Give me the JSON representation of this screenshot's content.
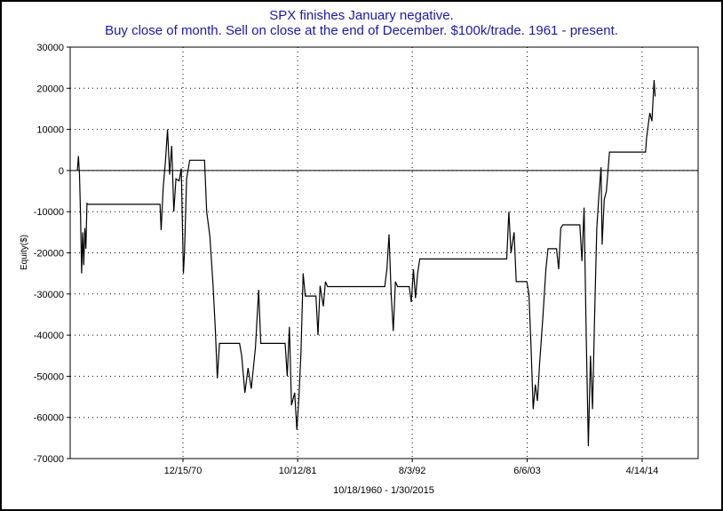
{
  "chart_data": {
    "type": "line",
    "title": "SPX finishes January negative.",
    "subtitle": "Buy close of month. Sell on close at the end of December. $100k/trade. 1961 - present.",
    "ylabel": "Equity($)",
    "xlabel": "10/18/1960 - 1/30/2015",
    "x_start": "10/18/1960",
    "x_end": "1/30/2015",
    "ylim": [
      -70000,
      30000
    ],
    "yticks": [
      30000,
      20000,
      10000,
      0,
      -10000,
      -20000,
      -30000,
      -40000,
      -50000,
      -60000,
      -70000
    ],
    "ytick_labels": [
      "30000",
      "20000",
      "10000",
      "0",
      "-10000",
      "-20000",
      "-30000",
      "-40000",
      "-50000",
      "-60000",
      "-70000"
    ],
    "xticks": [
      {
        "label": "12/15/70",
        "x": 1970.96
      },
      {
        "label": "10/12/81",
        "x": 1981.78
      },
      {
        "label": "8/3/92",
        "x": 1992.59
      },
      {
        "label": "6/6/03",
        "x": 2003.43
      },
      {
        "label": "4/14/14",
        "x": 2014.28
      }
    ],
    "grid": true,
    "zero_line": true,
    "series": [
      {
        "color": "#000000",
        "points": [
          [
            1961.0,
            0
          ],
          [
            1961.1,
            3500
          ],
          [
            1961.2,
            -1000
          ],
          [
            1961.3,
            -11000
          ],
          [
            1961.4,
            -25000
          ],
          [
            1961.5,
            -15000
          ],
          [
            1961.6,
            -23000
          ],
          [
            1961.7,
            -14000
          ],
          [
            1961.8,
            -19000
          ],
          [
            1961.9,
            -8000
          ],
          [
            1962.0,
            -8200
          ],
          [
            1968.8,
            -8200
          ],
          [
            1968.9,
            -14500
          ],
          [
            1969.1,
            -4000
          ],
          [
            1969.3,
            2000
          ],
          [
            1969.5,
            10000
          ],
          [
            1969.7,
            -1000
          ],
          [
            1969.9,
            6000
          ],
          [
            1970.1,
            -10000
          ],
          [
            1970.3,
            -2000
          ],
          [
            1970.6,
            -2500
          ],
          [
            1970.8,
            500
          ],
          [
            1971.0,
            -25000
          ],
          [
            1971.1,
            -20000
          ],
          [
            1971.3,
            -2000
          ],
          [
            1971.6,
            2500
          ],
          [
            1972.0,
            2500
          ],
          [
            1973.0,
            2500
          ],
          [
            1973.2,
            -10000
          ],
          [
            1973.5,
            -16000
          ],
          [
            1973.8,
            -28000
          ],
          [
            1974.0,
            -38000
          ],
          [
            1974.2,
            -50500
          ],
          [
            1974.4,
            -42000
          ],
          [
            1976.3,
            -42000
          ],
          [
            1976.5,
            -45000
          ],
          [
            1976.8,
            -54000
          ],
          [
            1977.1,
            -48000
          ],
          [
            1977.4,
            -53000
          ],
          [
            1977.8,
            -43000
          ],
          [
            1978.1,
            -29000
          ],
          [
            1978.3,
            -42000
          ],
          [
            1980.6,
            -42000
          ],
          [
            1980.8,
            -50000
          ],
          [
            1981.0,
            -38000
          ],
          [
            1981.2,
            -57000
          ],
          [
            1981.5,
            -54000
          ],
          [
            1981.7,
            -63000
          ],
          [
            1981.9,
            -55000
          ],
          [
            1982.1,
            -44000
          ],
          [
            1982.3,
            -25000
          ],
          [
            1982.5,
            -30500
          ],
          [
            1983.5,
            -30500
          ],
          [
            1983.7,
            -40000
          ],
          [
            1983.9,
            -28000
          ],
          [
            1984.2,
            -33000
          ],
          [
            1984.4,
            -27000
          ],
          [
            1984.6,
            -28200
          ],
          [
            1990.0,
            -28200
          ],
          [
            1990.2,
            -24000
          ],
          [
            1990.4,
            -15500
          ],
          [
            1990.6,
            -30000
          ],
          [
            1990.8,
            -39000
          ],
          [
            1991.0,
            -27000
          ],
          [
            1991.2,
            -28200
          ],
          [
            1992.3,
            -28200
          ],
          [
            1992.5,
            -32000
          ],
          [
            1992.7,
            -24000
          ],
          [
            1992.9,
            -31000
          ],
          [
            1993.1,
            -25000
          ],
          [
            1993.3,
            -21500
          ],
          [
            2001.5,
            -21500
          ],
          [
            2001.7,
            -10000
          ],
          [
            2001.9,
            -20000
          ],
          [
            2002.2,
            -15000
          ],
          [
            2002.4,
            -27000
          ],
          [
            2003.4,
            -27000
          ],
          [
            2003.6,
            -30000
          ],
          [
            2003.8,
            -43000
          ],
          [
            2004.0,
            -58000
          ],
          [
            2004.2,
            -52000
          ],
          [
            2004.4,
            -56000
          ],
          [
            2004.6,
            -47000
          ],
          [
            2004.9,
            -36000
          ],
          [
            2005.2,
            -24000
          ],
          [
            2005.4,
            -19000
          ],
          [
            2006.2,
            -19000
          ],
          [
            2006.4,
            -24000
          ],
          [
            2006.6,
            -14000
          ],
          [
            2006.8,
            -13200
          ],
          [
            2008.4,
            -13200
          ],
          [
            2008.6,
            -22000
          ],
          [
            2008.8,
            -9000
          ],
          [
            2009.0,
            -40000
          ],
          [
            2009.2,
            -67000
          ],
          [
            2009.4,
            -45000
          ],
          [
            2009.6,
            -58000
          ],
          [
            2009.8,
            -35000
          ],
          [
            2010.0,
            -14000
          ],
          [
            2010.2,
            -6000
          ],
          [
            2010.4,
            800
          ],
          [
            2010.5,
            -18000
          ],
          [
            2010.7,
            -7000
          ],
          [
            2010.9,
            -5000
          ],
          [
            2011.2,
            4500
          ],
          [
            2014.6,
            4500
          ],
          [
            2014.7,
            8000
          ],
          [
            2014.8,
            10000
          ],
          [
            2015.0,
            14000
          ],
          [
            2015.2,
            12000
          ],
          [
            2015.4,
            22000
          ],
          [
            2015.5,
            18000
          ]
        ]
      }
    ]
  }
}
